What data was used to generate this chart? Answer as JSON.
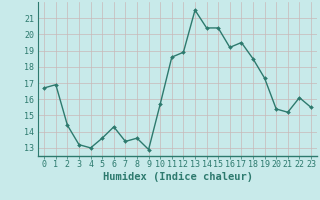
{
  "x": [
    0,
    1,
    2,
    3,
    4,
    5,
    6,
    7,
    8,
    9,
    10,
    11,
    12,
    13,
    14,
    15,
    16,
    17,
    18,
    19,
    20,
    21,
    22,
    23
  ],
  "y": [
    16.7,
    16.9,
    14.4,
    13.2,
    13.0,
    13.6,
    14.3,
    13.4,
    13.6,
    12.9,
    15.7,
    18.6,
    18.9,
    21.5,
    20.4,
    20.4,
    19.2,
    19.5,
    18.5,
    17.3,
    15.4,
    15.2,
    16.1,
    15.5
  ],
  "line_color": "#2d7a6e",
  "marker": "D",
  "markersize": 2.0,
  "linewidth": 1.0,
  "xlabel": "Humidex (Indice chaleur)",
  "xlabel_fontsize": 7.5,
  "ylim": [
    12.5,
    22.0
  ],
  "xlim": [
    -0.5,
    23.5
  ],
  "yticks": [
    13,
    14,
    15,
    16,
    17,
    18,
    19,
    20,
    21
  ],
  "xticks": [
    0,
    1,
    2,
    3,
    4,
    5,
    6,
    7,
    8,
    9,
    10,
    11,
    12,
    13,
    14,
    15,
    16,
    17,
    18,
    19,
    20,
    21,
    22,
    23
  ],
  "bg_color": "#c8eaea",
  "grid_color": "#b8d8d8",
  "tick_fontsize": 6.0,
  "spine_color": "#2d7a6e",
  "axis_bottom_color": "#2d7a6e"
}
